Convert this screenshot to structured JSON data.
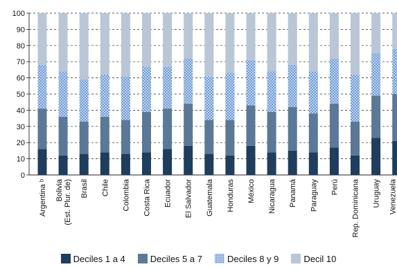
{
  "chart_data": {
    "type": "bar",
    "stacked": true,
    "ylim": [
      0,
      100
    ],
    "yticks": [
      0,
      10,
      20,
      30,
      40,
      50,
      60,
      70,
      80,
      90,
      100
    ],
    "grid": "horizontal dashed",
    "legend_position": "bottom",
    "categories": [
      "Argentina ᵇ",
      "Bolivia\n(Est. Plur. de)",
      "Brasil",
      "Chile",
      "Colombia",
      "Costa Rica",
      "Ecuador",
      "El Salvador",
      "Guatemala",
      "Honduras",
      "México",
      "Nicaragua",
      "Panamá",
      "Paraguay",
      "Perú",
      "Rep. Dominicana",
      "Uruguay",
      "Venezuela\n(Rep. Bol. de)"
    ],
    "series": [
      {
        "name": "Deciles 1 a 4",
        "color": "#1f3d5c",
        "pattern": "solid",
        "values": [
          16,
          12,
          13,
          14,
          13,
          14,
          16,
          18,
          13,
          12,
          18,
          14,
          15,
          14,
          17,
          12,
          23,
          21
        ]
      },
      {
        "name": "Deciles 5 a 7",
        "color": "#5b7896",
        "pattern": "solid",
        "values": [
          25,
          24,
          20,
          22,
          21,
          25,
          25,
          26,
          21,
          22,
          25,
          25,
          27,
          24,
          27,
          21,
          26,
          29
        ]
      },
      {
        "name": "Deciles 8 y 9",
        "color": "#6d9ad6",
        "pattern": "dotted",
        "values": [
          27,
          28,
          26,
          26,
          27,
          28,
          26,
          28,
          27,
          29,
          28,
          25,
          26,
          26,
          28,
          29,
          26,
          28
        ]
      },
      {
        "name": "Decil 10",
        "color": "#b9c6d6",
        "pattern": "solid",
        "values": [
          32,
          36,
          41,
          38,
          39,
          33,
          33,
          28,
          39,
          37,
          29,
          36,
          32,
          36,
          28,
          38,
          25,
          22
        ]
      }
    ]
  }
}
